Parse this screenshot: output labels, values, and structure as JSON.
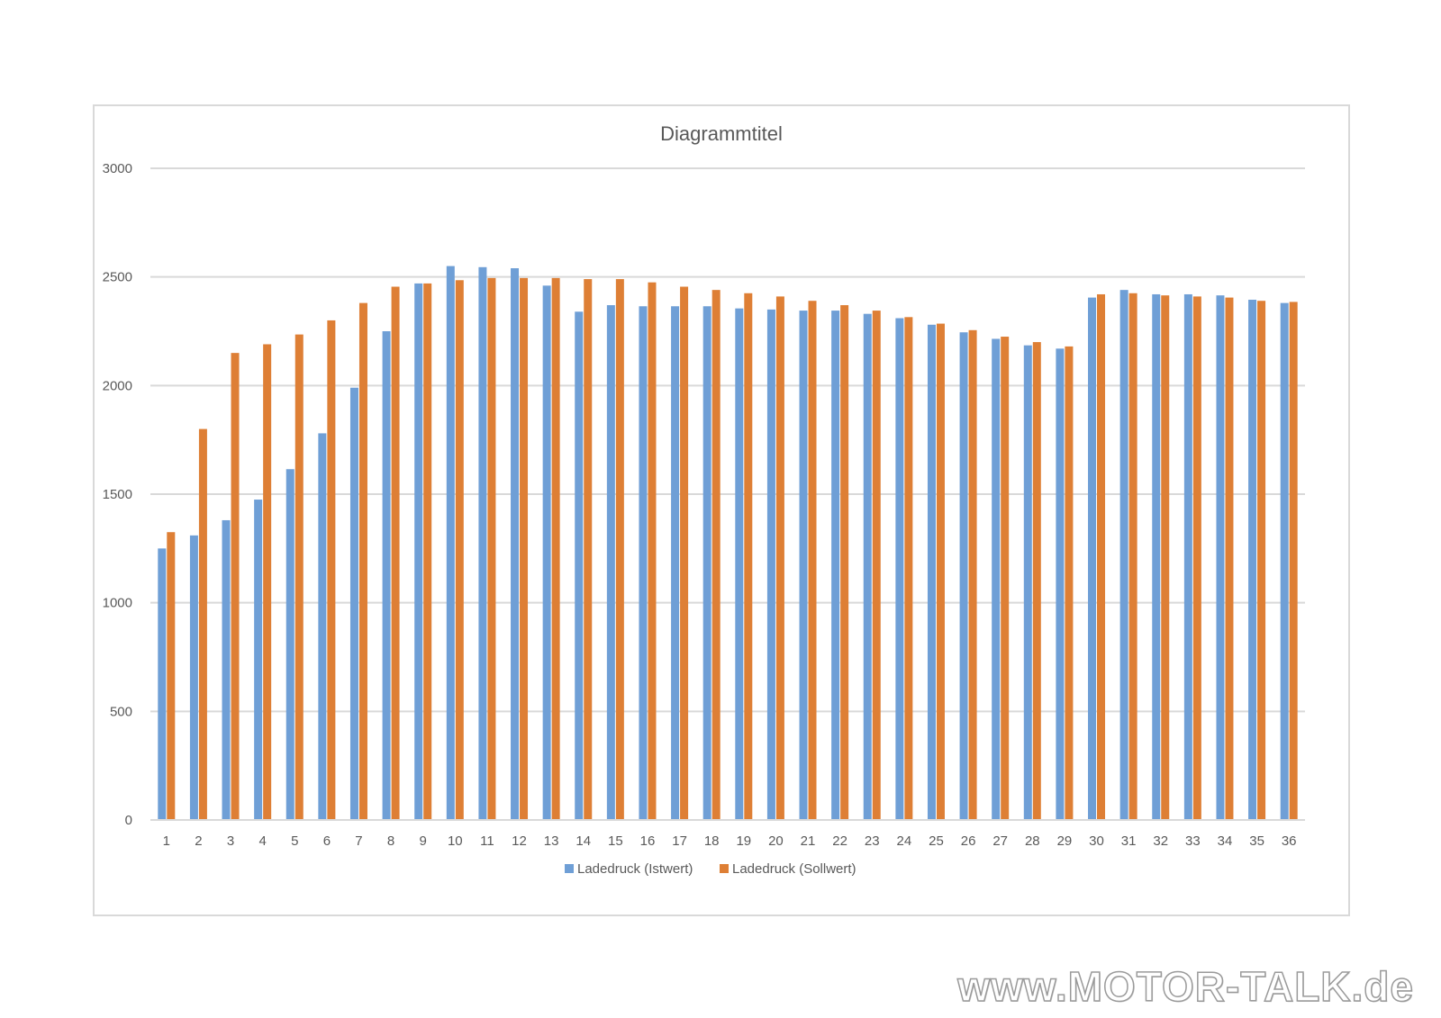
{
  "chart_data": {
    "type": "bar",
    "title": "Diagrammtitel",
    "xlabel": "",
    "ylabel": "",
    "ylim": [
      0,
      3000
    ],
    "yticks": [
      0,
      500,
      1000,
      1500,
      2000,
      2500,
      3000
    ],
    "grid": true,
    "legend_position": "bottom",
    "categories": [
      "1",
      "2",
      "3",
      "4",
      "5",
      "6",
      "7",
      "8",
      "9",
      "10",
      "11",
      "12",
      "13",
      "14",
      "15",
      "16",
      "17",
      "18",
      "19",
      "20",
      "21",
      "22",
      "23",
      "24",
      "25",
      "26",
      "27",
      "28",
      "29",
      "30",
      "31",
      "32",
      "33",
      "34",
      "35",
      "36"
    ],
    "series": [
      {
        "name": "Ladedruck (Istwert)",
        "color": "#6f9fd6",
        "values": [
          1250,
          1310,
          1380,
          1475,
          1615,
          1780,
          1990,
          2250,
          2470,
          2550,
          2545,
          2540,
          2460,
          2340,
          2370,
          2365,
          2365,
          2365,
          2355,
          2350,
          2345,
          2345,
          2330,
          2310,
          2280,
          2245,
          2215,
          2185,
          2170,
          2405,
          2440,
          2420,
          2420,
          2415,
          2395,
          2380
        ]
      },
      {
        "name": "Ladedruck (Sollwert)",
        "color": "#de7f35",
        "values": [
          1325,
          1800,
          2150,
          2190,
          2235,
          2300,
          2380,
          2455,
          2470,
          2485,
          2495,
          2495,
          2495,
          2490,
          2490,
          2475,
          2455,
          2440,
          2425,
          2410,
          2390,
          2370,
          2345,
          2315,
          2285,
          2255,
          2225,
          2200,
          2180,
          2420,
          2425,
          2415,
          2410,
          2405,
          2390,
          2385
        ]
      }
    ]
  },
  "watermark": "www.MOTOR-TALK.de"
}
